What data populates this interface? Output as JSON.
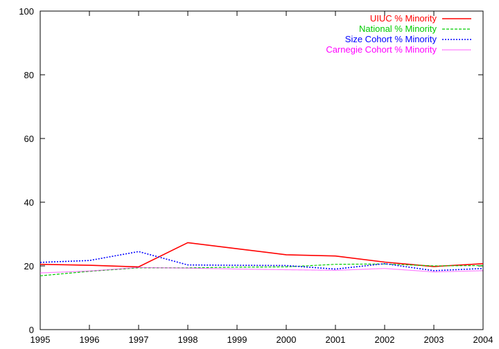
{
  "chart_data": {
    "type": "line",
    "title": "",
    "xlabel": "",
    "ylabel": "",
    "x": [
      1995,
      1996,
      1997,
      1998,
      1999,
      2000,
      2001,
      2002,
      2003,
      2004
    ],
    "xlim": [
      1995,
      2004
    ],
    "ylim": [
      0,
      100
    ],
    "xticks": [
      "1995",
      "1996",
      "1997",
      "1998",
      "1999",
      "2000",
      "2001",
      "2002",
      "2003",
      "2004"
    ],
    "yticks": [
      "0",
      "20",
      "40",
      "60",
      "80",
      "100"
    ],
    "grid": false,
    "legend_position": "top-right",
    "series": [
      {
        "name": "UIUC % Minority",
        "color": "#ff0000",
        "dash": "solid",
        "values": [
          20.5,
          20.2,
          19.7,
          27.3,
          25.4,
          23.5,
          23.1,
          21.2,
          19.8,
          20.7
        ]
      },
      {
        "name": "National % Minority",
        "color": "#00cc00",
        "dash": "dashed",
        "values": [
          16.9,
          18.3,
          19.4,
          19.4,
          19.6,
          19.7,
          20.5,
          20.6,
          20.0,
          20.1
        ]
      },
      {
        "name": "Size Cohort % Minority",
        "color": "#0000ff",
        "dash": "dotted",
        "values": [
          21.1,
          21.7,
          24.5,
          20.3,
          20.2,
          20.1,
          19.0,
          20.7,
          18.5,
          19.2
        ]
      },
      {
        "name": "Carnegie Cohort % Minority",
        "color": "#ff00ff",
        "dash": "fine-dotted",
        "values": [
          17.8,
          18.4,
          19.5,
          19.3,
          19.0,
          18.8,
          18.6,
          19.2,
          18.1,
          18.5
        ]
      }
    ]
  }
}
